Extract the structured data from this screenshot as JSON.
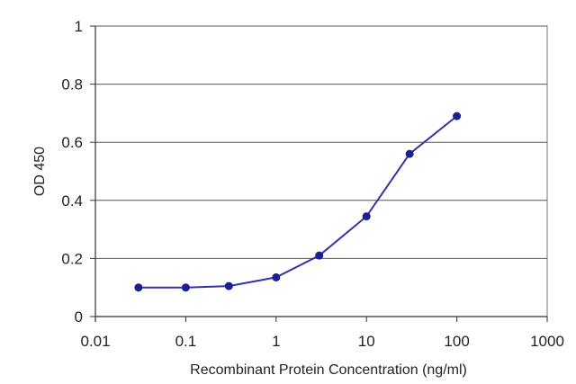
{
  "chart_data": {
    "type": "line",
    "title": "",
    "xlabel": "Recombinant Protein Concentration (ng/ml)",
    "ylabel": "OD 450",
    "x_scale": "log",
    "xlim": [
      0.01,
      1000
    ],
    "ylim": [
      0,
      1
    ],
    "x_ticks": [
      "0.01",
      "0.1",
      "1",
      "10",
      "100",
      "1000"
    ],
    "x_tick_values": [
      0.01,
      0.1,
      1,
      10,
      100,
      1000
    ],
    "y_ticks": [
      "0",
      "0.2",
      "0.4",
      "0.6",
      "0.8",
      "1"
    ],
    "y_tick_values": [
      0,
      0.2,
      0.4,
      0.6,
      0.8,
      1
    ],
    "grid": "horizontal",
    "legend": "none",
    "series": [
      {
        "x": [
          0.03,
          0.1,
          0.3,
          1,
          3,
          10,
          30,
          100
        ],
        "y": [
          0.1,
          0.1,
          0.105,
          0.135,
          0.21,
          0.345,
          0.56,
          0.69
        ]
      }
    ],
    "colors": {
      "line": "#3333aa",
      "marker": "#1c1f8f",
      "grid": "#555555",
      "axis": "#333333"
    }
  }
}
